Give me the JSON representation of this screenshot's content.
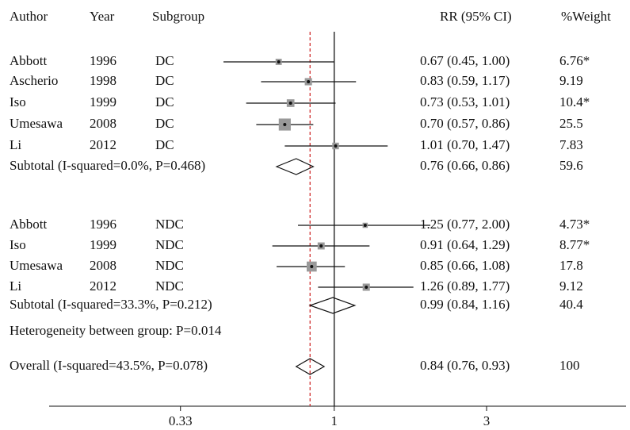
{
  "chart_data": {
    "type": "forest",
    "headers": {
      "author": "Author",
      "year": "Year",
      "subgroup": "Subgroup",
      "ci": "RR (95% CI)",
      "weight": "%Weight"
    },
    "log_scale": true,
    "xlim": [
      0.128,
      8.2
    ],
    "xticks": [
      0.33,
      1,
      3
    ],
    "null_value": 1,
    "marker_color": "#999999",
    "overall_line_color": "#cc2222",
    "rows": [
      {
        "kind": "study",
        "author": "Abbott",
        "year": "1996",
        "subgroup": "DC",
        "rr": 0.67,
        "lo": 0.45,
        "hi": 1.0,
        "ci_label": "0.67 (0.45, 1.00)",
        "weight": 6.76,
        "weight_label": "6.76*"
      },
      {
        "kind": "study",
        "author": "Ascherio",
        "year": "1998",
        "subgroup": "DC",
        "rr": 0.83,
        "lo": 0.59,
        "hi": 1.17,
        "ci_label": "0.83 (0.59, 1.17)",
        "weight": 9.19
      },
      {
        "kind": "study",
        "author": "Iso",
        "year": "1999",
        "subgroup": "DC",
        "rr": 0.73,
        "lo": 0.53,
        "hi": 1.01,
        "ci_label": "0.73 (0.53, 1.01)",
        "weight": 10.4,
        "weight_label": "10.4*"
      },
      {
        "kind": "study",
        "author": "Umesawa",
        "year": "2008",
        "subgroup": "DC",
        "rr": 0.7,
        "lo": 0.57,
        "hi": 0.86,
        "ci_label": "0.70 (0.57, 0.86)",
        "weight": 25.5
      },
      {
        "kind": "study",
        "author": "Li",
        "year": "2012",
        "subgroup": "DC",
        "rr": 1.01,
        "lo": 0.7,
        "hi": 1.47,
        "ci_label": "1.01 (0.70, 1.47)",
        "weight": 7.83
      },
      {
        "kind": "subtotal",
        "label": "Subtotal (I-squared=0.0%, P=0.468)",
        "rr": 0.76,
        "lo": 0.66,
        "hi": 0.86,
        "ci_label": "0.76 (0.66, 0.86)",
        "weight": 59.6
      },
      {
        "kind": "study",
        "author": "Abbott",
        "year": "1996",
        "subgroup": "NDC",
        "rr": 1.25,
        "lo": 0.77,
        "hi": 2.0,
        "ci_label": "1.25 (0.77, 2.00)",
        "weight": 4.73,
        "weight_label": "4.73*"
      },
      {
        "kind": "study",
        "author": "Iso",
        "year": "1999",
        "subgroup": "NDC",
        "rr": 0.91,
        "lo": 0.64,
        "hi": 1.29,
        "ci_label": "0.91 (0.64, 1.29)",
        "weight": 8.77,
        "weight_label": "8.77*"
      },
      {
        "kind": "study",
        "author": "Umesawa",
        "year": "2008",
        "subgroup": "NDC",
        "rr": 0.85,
        "lo": 0.66,
        "hi": 1.08,
        "ci_label": "0.85 (0.66, 1.08)",
        "weight": 17.8
      },
      {
        "kind": "study",
        "author": "Li",
        "year": "2012",
        "subgroup": "NDC",
        "rr": 1.26,
        "lo": 0.89,
        "hi": 1.77,
        "ci_label": "1.26 (0.89, 1.77)",
        "weight": 9.12
      },
      {
        "kind": "subtotal",
        "label": "Subtotal (I-squared=33.3%, P=0.212)",
        "rr": 0.99,
        "lo": 0.84,
        "hi": 1.16,
        "ci_label": "0.99 (0.84, 1.16)",
        "weight": 40.4
      },
      {
        "kind": "text",
        "label": "Heterogeneity between group: P=0.014"
      },
      {
        "kind": "overall",
        "label": "Overall (I-squared=43.5%, P=0.078)",
        "rr": 0.84,
        "lo": 0.76,
        "hi": 0.93,
        "ci_label": "0.84 (0.76, 0.93)",
        "weight": 100
      }
    ]
  }
}
